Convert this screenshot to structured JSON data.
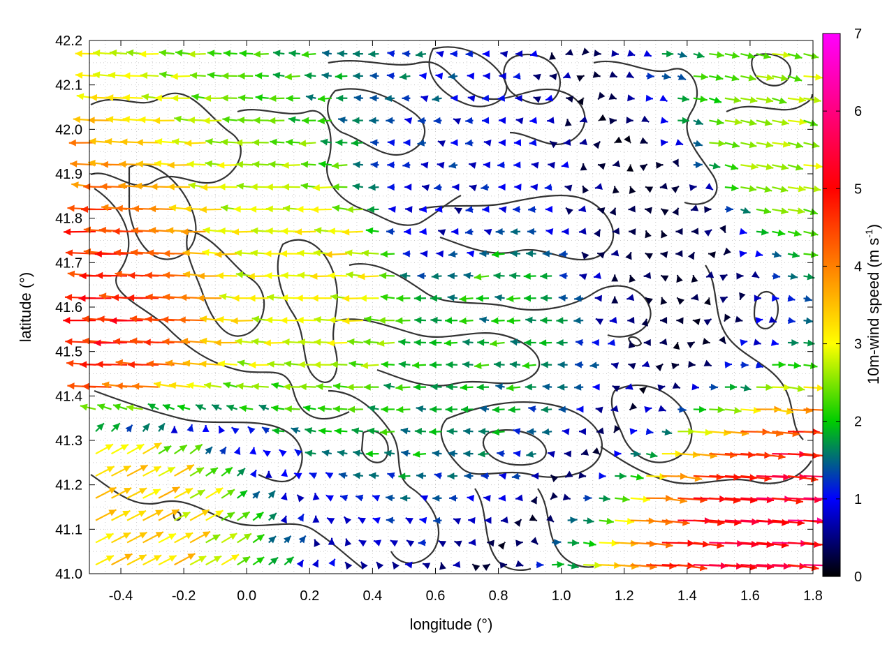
{
  "chart_data": {
    "type": "quiver",
    "title": "",
    "xlabel": "longitude (°)",
    "ylabel": "latitude (°)",
    "colorbar_label_main": "10m-wind speed (m s",
    "colorbar_label_exp": "-1",
    "colorbar_label_close": ")",
    "xlim": [
      -0.5,
      1.8
    ],
    "ylim": [
      41.0,
      42.2
    ],
    "clim": [
      0,
      7
    ],
    "x_ticks": [
      "-0.4",
      "-0.2",
      "0.0",
      "0.2",
      "0.4",
      "0.6",
      "0.8",
      "1.0",
      "1.2",
      "1.4",
      "1.6",
      "1.8"
    ],
    "y_ticks": [
      "41.0",
      "41.1",
      "41.2",
      "41.3",
      "41.4",
      "41.5",
      "41.6",
      "41.7",
      "41.8",
      "41.9",
      "42.0",
      "42.1",
      "42.2"
    ],
    "colorbar_ticks": [
      "0",
      "1",
      "2",
      "3",
      "4",
      "5",
      "6",
      "7"
    ],
    "colormap": [
      "#000000",
      "#0000ff",
      "#00cc00",
      "#ffff00",
      "#ff8000",
      "#ff0000",
      "#ff00ff"
    ],
    "grid": true,
    "grid_spacing_deg": 0.05,
    "grid_x_range": [
      -0.5,
      1.8
    ],
    "grid_y_range": [
      41.0,
      42.2
    ],
    "wind_field_samples": [
      {
        "x": -0.45,
        "y": 41.55,
        "u": -5.5,
        "v": 0.2,
        "speed": 5.5
      },
      {
        "x": -0.45,
        "y": 41.15,
        "u": 3.5,
        "v": 1.8,
        "speed": 4.0
      },
      {
        "x": 0.3,
        "y": 41.7,
        "u": -3.5,
        "v": 0.1,
        "speed": 3.5
      },
      {
        "x": 0.8,
        "y": 41.6,
        "u": -2.2,
        "v": 0.0,
        "speed": 2.2
      },
      {
        "x": 0.6,
        "y": 41.8,
        "u": -1.0,
        "v": 0.0,
        "speed": 1.0
      },
      {
        "x": 1.3,
        "y": 41.75,
        "u": -0.2,
        "v": 0.1,
        "speed": 0.3
      },
      {
        "x": 1.7,
        "y": 41.05,
        "u": 6.0,
        "v": -0.4,
        "speed": 6.0
      },
      {
        "x": 1.7,
        "y": 41.95,
        "u": 3.0,
        "v": -0.6,
        "speed": 3.0
      }
    ]
  }
}
